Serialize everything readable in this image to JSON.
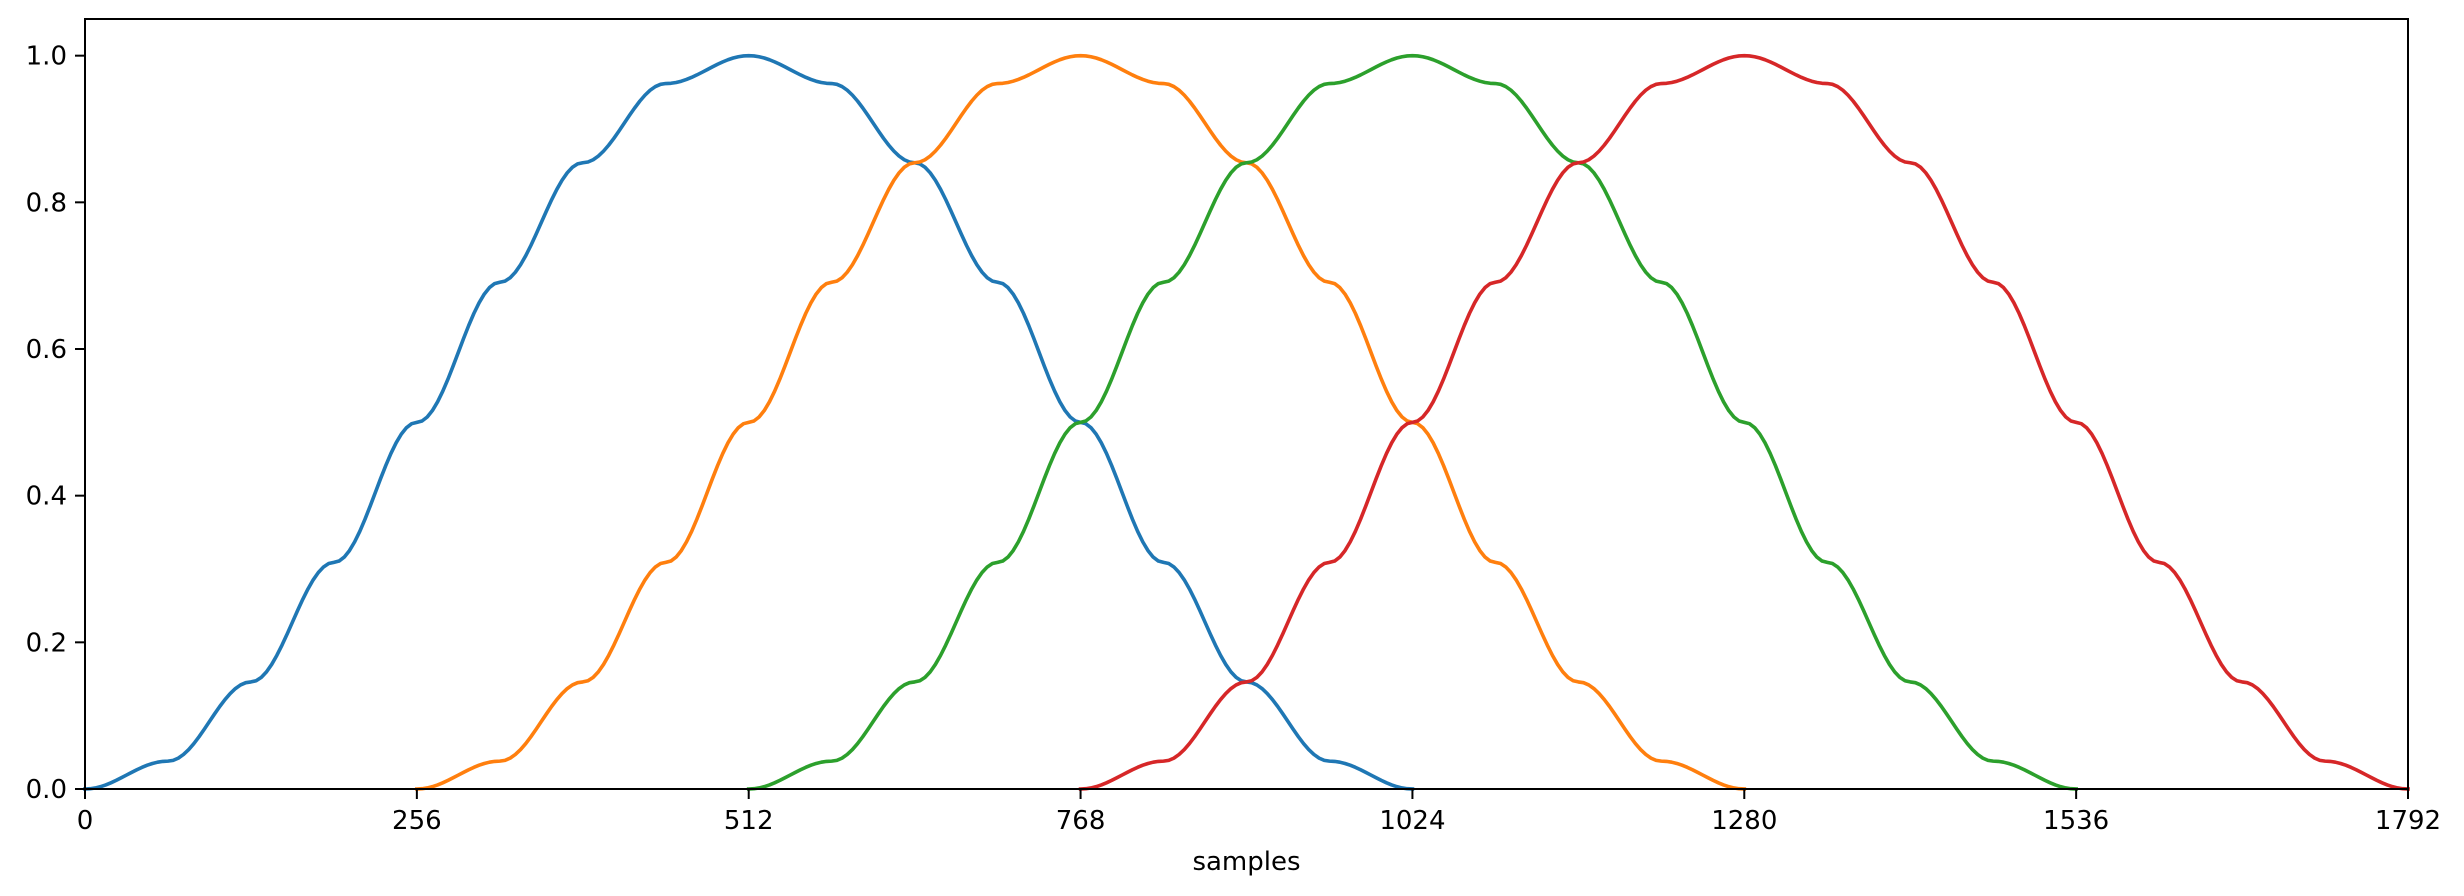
{
  "chart_data": {
    "type": "line",
    "title": "",
    "xlabel": "samples",
    "ylabel": "",
    "xlim": [
      0,
      1792
    ],
    "ylim": [
      0,
      1.05
    ],
    "xticks": [
      0,
      256,
      512,
      768,
      1024,
      1280,
      1536,
      1792
    ],
    "xtick_labels": [
      "0",
      "256",
      "512",
      "768",
      "1024",
      "1280",
      "1536",
      "1792"
    ],
    "yticks": [
      0.0,
      0.2,
      0.4,
      0.6,
      0.8,
      1.0
    ],
    "ytick_labels": [
      "0.0",
      "0.2",
      "0.4",
      "0.6",
      "0.8",
      "1.0"
    ],
    "grid": false,
    "legend": "none",
    "series": [
      {
        "color": "#1f77b4",
        "x": [
          0,
          64,
          128,
          192,
          256,
          320,
          384,
          448,
          512,
          576,
          640,
          704,
          768,
          832,
          896,
          960,
          1024
        ],
        "y": [
          0.0,
          0.038,
          0.146,
          0.309,
          0.5,
          0.691,
          0.854,
          0.962,
          1.0,
          0.962,
          0.854,
          0.691,
          0.5,
          0.309,
          0.146,
          0.038,
          0.0
        ]
      },
      {
        "color": "#ff7f0e",
        "x": [
          256,
          320,
          384,
          448,
          512,
          576,
          640,
          704,
          768,
          832,
          896,
          960,
          1024,
          1088,
          1152,
          1216,
          1280
        ],
        "y": [
          0.0,
          0.038,
          0.146,
          0.309,
          0.5,
          0.691,
          0.854,
          0.962,
          1.0,
          0.962,
          0.854,
          0.691,
          0.5,
          0.309,
          0.146,
          0.038,
          0.0
        ]
      },
      {
        "color": "#2ca02c",
        "x": [
          512,
          576,
          640,
          704,
          768,
          832,
          896,
          960,
          1024,
          1088,
          1152,
          1216,
          1280,
          1344,
          1408,
          1472,
          1536
        ],
        "y": [
          0.0,
          0.038,
          0.146,
          0.309,
          0.5,
          0.691,
          0.854,
          0.962,
          1.0,
          0.962,
          0.854,
          0.691,
          0.5,
          0.309,
          0.146,
          0.038,
          0.0
        ]
      },
      {
        "color": "#d62728",
        "x": [
          768,
          832,
          896,
          960,
          1024,
          1088,
          1152,
          1216,
          1280,
          1344,
          1408,
          1472,
          1536,
          1600,
          1664,
          1728,
          1792
        ],
        "y": [
          0.0,
          0.038,
          0.146,
          0.309,
          0.5,
          0.691,
          0.854,
          0.962,
          1.0,
          0.962,
          0.854,
          0.691,
          0.5,
          0.309,
          0.146,
          0.038,
          0.0
        ]
      }
    ]
  }
}
